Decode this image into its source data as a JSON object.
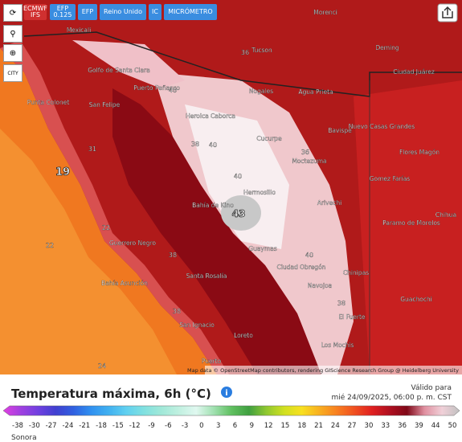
{
  "toolbar": {
    "buttons": [
      "ECMWF IFS",
      "EFP 0.125",
      "EFP",
      "Reino Unido",
      "IC",
      "MICRÓMETRO"
    ],
    "side_label": "CITY"
  },
  "map": {
    "places": [
      "Morenci",
      "Mexicali",
      "Tucson",
      "Deming",
      "Ciudad Juárez",
      "Golfo de Santa Clara",
      "Puerto Peñasco",
      "Nogales",
      "Agua Prieta",
      "Punta Colonet",
      "San Felipe",
      "Heroica Caborca",
      "Bavispe",
      "Nuevo Casas Grandes",
      "Cucurpe",
      "Flores Magón",
      "Moctezuma",
      "Gomez Farías",
      "Hermosillo",
      "Bahía de Kino",
      "Arivechi",
      "Chihua",
      "Paramo de Morelos",
      "Guerrero Negro",
      "Guaymas",
      "Ciudad Obregón",
      "Chinipas",
      "Bahía Asunción",
      "Santa Rosalía",
      "Navojoa",
      "Guachochi",
      "San Ignacio",
      "El Fuerte",
      "Loreto",
      "Los Mochis",
      "Puerto"
    ],
    "values": [
      "36",
      "40",
      "38",
      "40",
      "31",
      "19",
      "40",
      "43",
      "22",
      "22",
      "40",
      "38",
      "38",
      "38",
      "24",
      "36"
    ],
    "attribution": "Map data © OpenStreetMap contributors, rendering GIScience Research Group @ Heidelberg University"
  },
  "legend": {
    "title": "Temperatura máxima, 6h (°C)",
    "valid_label": "Válido para",
    "valid_date": "mié 24/09/2025, 06:00 p. m. CST",
    "scale": [
      "-38",
      "-30",
      "-27",
      "-24",
      "-21",
      "-18",
      "-15",
      "-12",
      "-9",
      "-6",
      "-3",
      "0",
      "3",
      "6",
      "9",
      "12",
      "15",
      "18",
      "21",
      "24",
      "27",
      "30",
      "33",
      "36",
      "39",
      "44",
      "50"
    ],
    "colors": [
      "#e040e0",
      "#a040e0",
      "#7040e0",
      "#4040d0",
      "#3060e0",
      "#3090f0",
      "#40b0f0",
      "#60d0f0",
      "#80e0e0",
      "#a0e8d8",
      "#c0f0e0",
      "#e0f8f0",
      "#a0e0b0",
      "#60c060",
      "#40a040",
      "#90c830",
      "#d0e020",
      "#f8e020",
      "#f8b020",
      "#f88020",
      "#f05020",
      "#e02020",
      "#b01020",
      "#800818",
      "#e090a0",
      "#f0d0d8",
      "#c0c0c0"
    ]
  },
  "footer": "Sonora"
}
